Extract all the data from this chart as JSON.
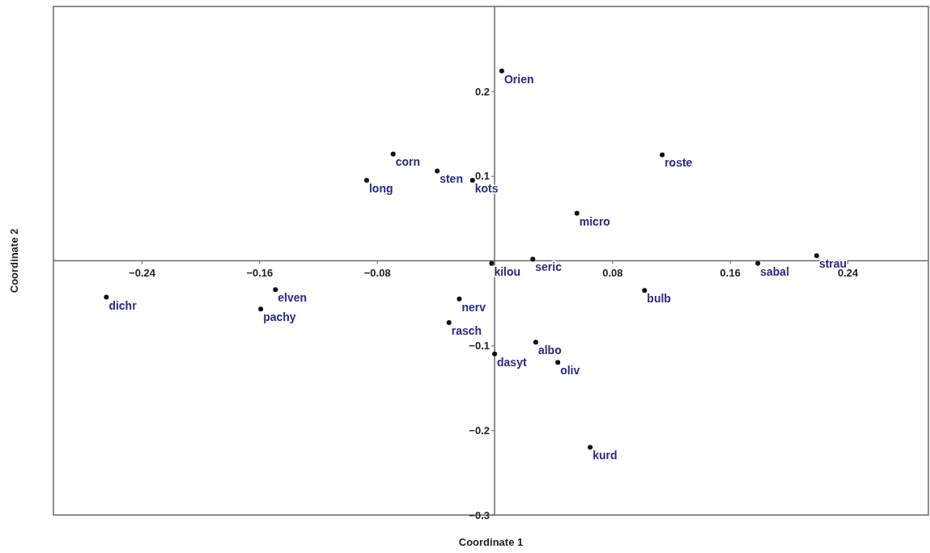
{
  "chart_data": {
    "type": "scatter",
    "xlabel": "Coordinate 1",
    "ylabel": "Coordinate 2",
    "xlim": [
      -0.3,
      0.295
    ],
    "ylim": [
      -0.3,
      0.3
    ],
    "xticks": [
      -0.24,
      -0.16,
      -0.08,
      0.08,
      0.16,
      0.24
    ],
    "yticks": [
      -0.3,
      -0.2,
      -0.1,
      0.1,
      0.2
    ],
    "grid": false,
    "marker": "circle",
    "series": [
      {
        "color": "#111111",
        "x": [
          0.0049,
          -0.069,
          -0.039,
          -0.015,
          -0.087,
          0.114,
          0.056,
          0.026,
          -0.002,
          0.219,
          0.179,
          0.102,
          -0.024,
          -0.031,
          0.028,
          0.0,
          0.043,
          0.065,
          -0.264,
          -0.149,
          -0.159
        ],
        "values": [
          0.224,
          0.126,
          0.106,
          0.095,
          0.095,
          0.125,
          0.056,
          0.002,
          -0.003,
          0.006,
          -0.003,
          -0.035,
          -0.045,
          -0.073,
          -0.096,
          -0.11,
          -0.12,
          -0.22,
          -0.043,
          -0.034,
          -0.057
        ]
      }
    ],
    "annotations": [
      {
        "text": "Orien",
        "x": 0.0049,
        "y": 0.224
      },
      {
        "text": "corn",
        "x": -0.069,
        "y": 0.126
      },
      {
        "text": "sten",
        "x": -0.039,
        "y": 0.106
      },
      {
        "text": "kots",
        "x": -0.015,
        "y": 0.095
      },
      {
        "text": "long",
        "x": -0.087,
        "y": 0.095
      },
      {
        "text": "roste",
        "x": 0.114,
        "y": 0.125
      },
      {
        "text": "micro",
        "x": 0.056,
        "y": 0.056
      },
      {
        "text": "seric",
        "x": 0.026,
        "y": 0.002
      },
      {
        "text": "kilou",
        "x": -0.002,
        "y": -0.003
      },
      {
        "text": "strau",
        "x": 0.219,
        "y": 0.006
      },
      {
        "text": "sabal",
        "x": 0.179,
        "y": -0.003
      },
      {
        "text": "bulb",
        "x": 0.102,
        "y": -0.035
      },
      {
        "text": "nerv",
        "x": -0.024,
        "y": -0.045
      },
      {
        "text": "rasch",
        "x": -0.031,
        "y": -0.073
      },
      {
        "text": "albo",
        "x": 0.028,
        "y": -0.096
      },
      {
        "text": "dasyt",
        "x": 0.0,
        "y": -0.11
      },
      {
        "text": "oliv",
        "x": 0.043,
        "y": -0.12
      },
      {
        "text": "kurd",
        "x": 0.065,
        "y": -0.22
      },
      {
        "text": "dichr",
        "x": -0.264,
        "y": -0.043
      },
      {
        "text": "elven",
        "x": -0.149,
        "y": -0.034
      },
      {
        "text": "pachy",
        "x": -0.159,
        "y": -0.057
      }
    ]
  }
}
